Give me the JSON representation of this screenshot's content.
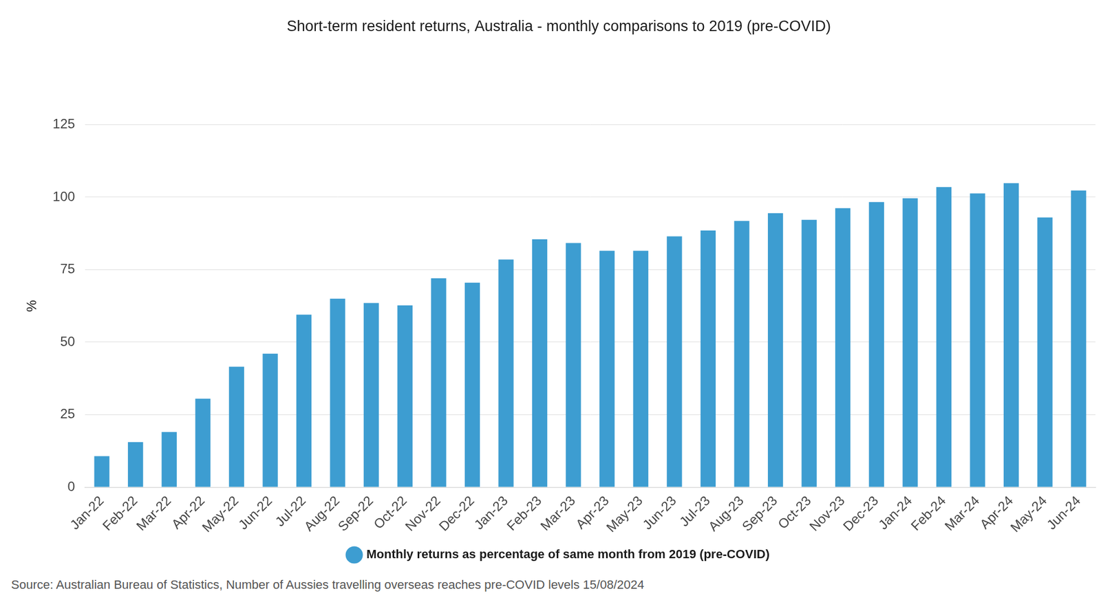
{
  "chart_data": {
    "type": "bar",
    "title": "Short-term resident returns, Australia - monthly comparisons to 2019 (pre-COVID)",
    "y_label": "%",
    "source": "Source: Australian Bureau of Statistics, Number of Aussies travelling overseas reaches pre-COVID levels 15/08/2024",
    "categories": [
      "Jan-22",
      "Feb-22",
      "Mar-22",
      "Apr-22",
      "May-22",
      "Jun-22",
      "Jul-22",
      "Aug-22",
      "Sep-22",
      "Oct-22",
      "Nov-22",
      "Dec-22",
      "Jan-23",
      "Feb-23",
      "Mar-23",
      "Apr-23",
      "May-23",
      "Jun-23",
      "Jul-23",
      "Aug-23",
      "Sep-23",
      "Oct-23",
      "Nov-23",
      "Dec-23",
      "Jan-24",
      "Feb-24",
      "Mar-24",
      "Apr-24",
      "May-24",
      "Jun-24"
    ],
    "series": [
      {
        "name": "Monthly returns as percentage of same month from 2019 (pre-COVID)",
        "color": "#3d9dd1",
        "values": [
          10.7,
          15.5,
          19,
          30.5,
          41.5,
          46,
          59.5,
          65,
          63.5,
          62.7,
          72,
          70.5,
          78.5,
          85.5,
          84.2,
          81.5,
          81.5,
          86.5,
          88.5,
          91.8,
          94.5,
          92.2,
          96.2,
          98.3,
          99.6,
          103.5,
          101.3,
          104.8,
          93,
          102.3
        ]
      }
    ],
    "ylim": [
      0,
      125
    ],
    "yticks": [
      0,
      25,
      50,
      75,
      100,
      125
    ],
    "grid": true,
    "legend": "bottom"
  }
}
